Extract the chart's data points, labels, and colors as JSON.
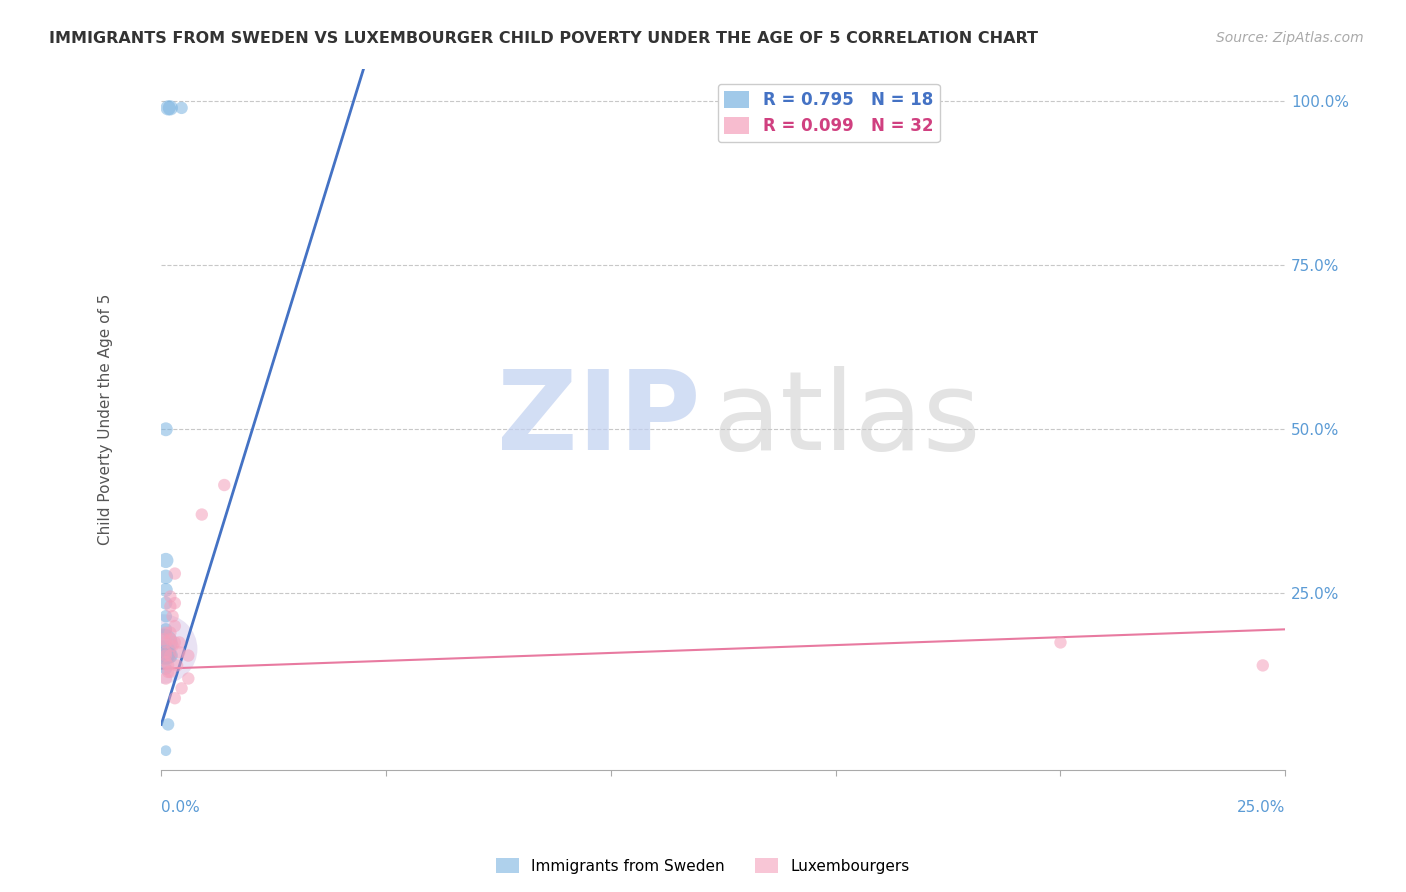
{
  "title": "IMMIGRANTS FROM SWEDEN VS LUXEMBOURGER CHILD POVERTY UNDER THE AGE OF 5 CORRELATION CHART",
  "source": "Source: ZipAtlas.com",
  "ylabel": "Child Poverty Under the Age of 5",
  "xlim": [
    0.0,
    0.25
  ],
  "ylim": [
    -0.02,
    1.05
  ],
  "blue_scatter": [
    [
      0.0015,
      0.99
    ],
    [
      0.002,
      0.99
    ],
    [
      0.0045,
      0.99
    ],
    [
      0.001,
      0.5
    ],
    [
      0.001,
      0.3
    ],
    [
      0.001,
      0.275
    ],
    [
      0.001,
      0.255
    ],
    [
      0.001,
      0.235
    ],
    [
      0.001,
      0.215
    ],
    [
      0.001,
      0.195
    ],
    [
      0.0005,
      0.175
    ],
    [
      0.0005,
      0.16
    ],
    [
      0.001,
      0.155
    ],
    [
      0.0015,
      0.155
    ],
    [
      0.002,
      0.155
    ],
    [
      0.001,
      0.135
    ],
    [
      0.0015,
      0.05
    ],
    [
      0.001,
      0.01
    ]
  ],
  "blue_sizes": [
    120,
    120,
    80,
    100,
    120,
    110,
    100,
    90,
    80,
    80,
    400,
    300,
    180,
    150,
    120,
    80,
    80,
    60
  ],
  "pink_scatter": [
    [
      0.0005,
      0.18
    ],
    [
      0.001,
      0.19
    ],
    [
      0.001,
      0.175
    ],
    [
      0.001,
      0.16
    ],
    [
      0.001,
      0.155
    ],
    [
      0.001,
      0.145
    ],
    [
      0.0015,
      0.14
    ],
    [
      0.0015,
      0.13
    ],
    [
      0.001,
      0.12
    ],
    [
      0.002,
      0.245
    ],
    [
      0.002,
      0.23
    ],
    [
      0.0025,
      0.215
    ],
    [
      0.002,
      0.19
    ],
    [
      0.002,
      0.18
    ],
    [
      0.0025,
      0.17
    ],
    [
      0.002,
      0.155
    ],
    [
      0.002,
      0.13
    ],
    [
      0.003,
      0.28
    ],
    [
      0.003,
      0.235
    ],
    [
      0.003,
      0.2
    ],
    [
      0.003,
      0.175
    ],
    [
      0.0035,
      0.14
    ],
    [
      0.003,
      0.09
    ],
    [
      0.004,
      0.175
    ],
    [
      0.004,
      0.16
    ],
    [
      0.0045,
      0.105
    ],
    [
      0.006,
      0.155
    ],
    [
      0.006,
      0.12
    ],
    [
      0.009,
      0.37
    ],
    [
      0.014,
      0.415
    ],
    [
      0.2,
      0.175
    ],
    [
      0.245,
      0.14
    ]
  ],
  "pink_sizes": [
    80,
    80,
    80,
    80,
    80,
    80,
    80,
    80,
    80,
    80,
    80,
    80,
    80,
    80,
    80,
    80,
    80,
    80,
    80,
    80,
    80,
    80,
    80,
    80,
    80,
    80,
    80,
    80,
    80,
    80,
    80,
    80
  ],
  "blue_line_x": [
    0.0,
    0.045
  ],
  "blue_line_y": [
    0.05,
    1.05
  ],
  "pink_line_x": [
    0.0,
    0.25
  ],
  "pink_line_y": [
    0.135,
    0.195
  ],
  "blue_color": "#7ab3e0",
  "pink_color": "#f4a0bb",
  "blue_line_color": "#4472c4",
  "pink_line_color": "#e87aa0",
  "bg_color": "#ffffff",
  "grid_color": "#c8c8c8",
  "title_color": "#333333",
  "axis_label_color": "#5b9bd5",
  "ylabel_color": "#555555",
  "watermark_zip_color": "#c0d0f0",
  "watermark_atlas_color": "#c8c8c8",
  "legend_blue_text_color": "#4472c4",
  "legend_pink_text_color": "#d04080",
  "xtick_positions": [
    0.0,
    0.05,
    0.1,
    0.15,
    0.2,
    0.25
  ],
  "ytick_right_positions": [
    0.0,
    0.25,
    0.5,
    0.75,
    1.0
  ],
  "ytick_right_labels": [
    "",
    "25.0%",
    "50.0%",
    "75.0%",
    "100.0%"
  ]
}
